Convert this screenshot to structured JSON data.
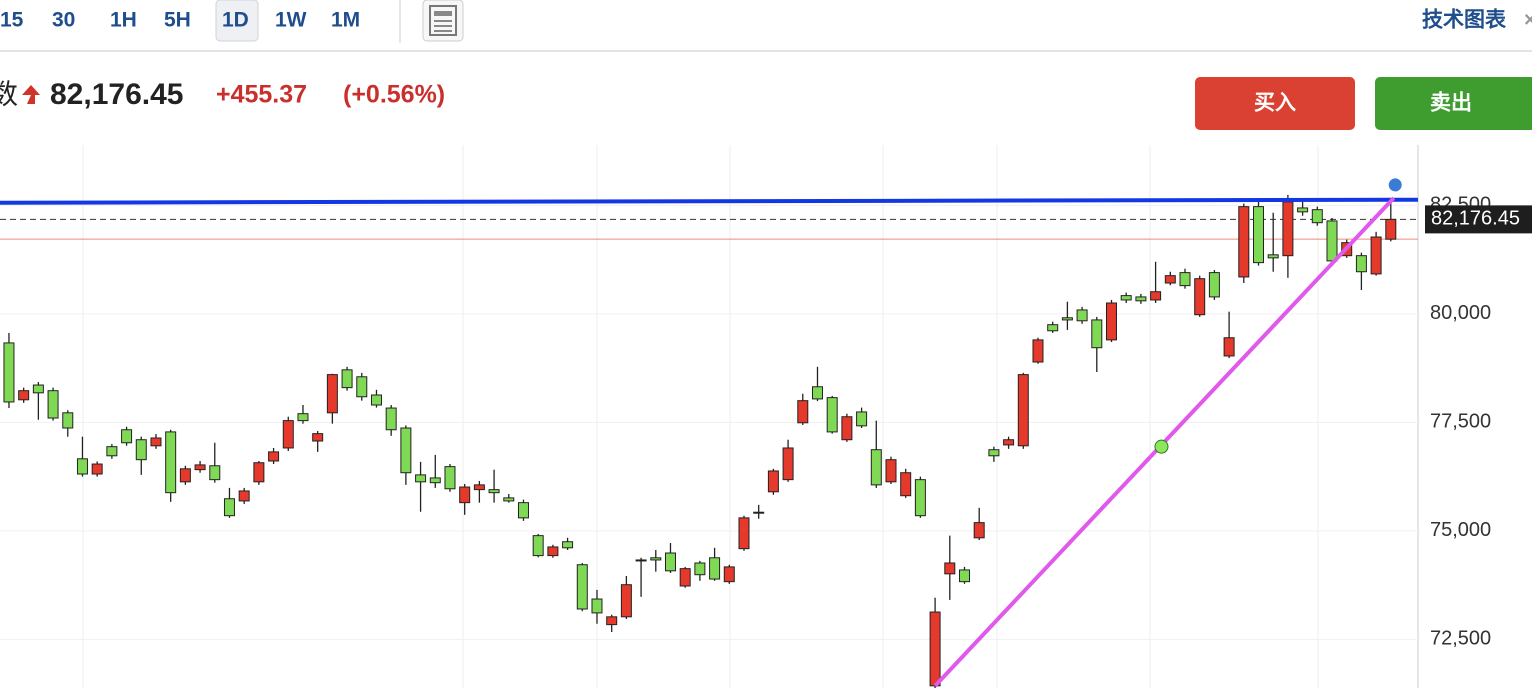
{
  "toolbar": {
    "tabs": [
      "15",
      "30",
      "1H",
      "5H",
      "1D",
      "1W",
      "1M"
    ],
    "selected_tab": 4,
    "right_link": "技术图表",
    "close": "×"
  },
  "header": {
    "name_fragment": "数",
    "last_price": {
      "value": 82176.45,
      "label": "82,176.45"
    },
    "change": "+455.37",
    "change_pct": "(+0.56%)",
    "buy": "买入",
    "sell": "卖出"
  },
  "chart_data": {
    "type": "candlestick",
    "up_color": "#e5392c",
    "down_color": "#80d955",
    "xlim": [
      -0.61,
      95.85
    ],
    "ylim": [
      71380,
      83890
    ],
    "yticks": [
      {
        "value": 72500,
        "label": "72,500"
      },
      {
        "value": 75000,
        "label": "75,000"
      },
      {
        "value": 77500,
        "label": "77,500"
      },
      {
        "value": 80000,
        "label": "80,000"
      },
      {
        "value": 82500,
        "label": "82,500"
      }
    ],
    "grid": true,
    "prev_close": 81721.08,
    "series": {
      "open": [
        79330,
        78020,
        78360,
        78230,
        77720,
        76660,
        76310,
        76940,
        77330,
        77100,
        76960,
        77280,
        76130,
        76410,
        76500,
        75740,
        75690,
        76130,
        76610,
        76910,
        77700,
        77070,
        77720,
        78710,
        78550,
        78130,
        77830,
        77370,
        76290,
        76220,
        76480,
        75650,
        75950,
        75950,
        75760,
        75650,
        74890,
        74430,
        74750,
        74220,
        73430,
        72840,
        73020,
        74330,
        74380,
        74490,
        73730,
        74260,
        74380,
        73830,
        74590,
        75430,
        75900,
        76180,
        77490,
        78320,
        78070,
        77100,
        77740,
        76870,
        76130,
        75810,
        76180,
        71430,
        74010,
        74100,
        74840,
        76870,
        76980,
        76960,
        78890,
        79750,
        79910,
        80090,
        79860,
        79400,
        80420,
        80390,
        80320,
        80710,
        80950,
        79980,
        80950,
        79030,
        80850,
        82470,
        81360,
        81340,
        82440,
        82400,
        82140,
        81340,
        81340,
        80920,
        81720
      ],
      "high": [
        79560,
        78300,
        78430,
        78300,
        77780,
        77170,
        76600,
        77000,
        77400,
        77170,
        77230,
        77330,
        76500,
        76610,
        77030,
        75990,
        75990,
        76610,
        76910,
        77630,
        77900,
        77300,
        78620,
        78780,
        78640,
        78250,
        77900,
        77430,
        76590,
        76750,
        76540,
        76080,
        76150,
        76410,
        75850,
        75720,
        74930,
        74680,
        74840,
        74260,
        73640,
        73070,
        73960,
        74380,
        74560,
        74720,
        74170,
        74310,
        74610,
        74220,
        75350,
        75600,
        76430,
        77100,
        78160,
        78780,
        78110,
        77700,
        77840,
        77540,
        76710,
        76430,
        76250,
        73460,
        74890,
        74170,
        75530,
        76940,
        77170,
        78640,
        79450,
        79820,
        80280,
        80160,
        79930,
        80320,
        80490,
        80460,
        81200,
        80970,
        81040,
        80880,
        81010,
        80050,
        82540,
        82630,
        82330,
        82740,
        82630,
        82470,
        82210,
        81710,
        81410,
        81890,
        82560
      ],
      "low": [
        77830,
        77950,
        77560,
        77540,
        77170,
        76250,
        76250,
        76660,
        76960,
        76290,
        76890,
        75670,
        76060,
        76340,
        76110,
        75300,
        75620,
        76060,
        76540,
        76840,
        77470,
        76820,
        77470,
        78230,
        78000,
        77840,
        77190,
        76060,
        75440,
        75990,
        75900,
        75370,
        75650,
        75650,
        75650,
        75230,
        74390,
        74380,
        74560,
        73150,
        72860,
        72670,
        72970,
        73480,
        74060,
        74030,
        73690,
        73850,
        73850,
        73780,
        74540,
        75280,
        75830,
        76130,
        77440,
        77990,
        77240,
        77050,
        77370,
        75990,
        76080,
        75760,
        75300,
        71380,
        73410,
        73780,
        74790,
        76590,
        76890,
        76890,
        78850,
        79560,
        79630,
        79770,
        78660,
        79350,
        80250,
        80230,
        80250,
        80660,
        80580,
        79930,
        80320,
        78980,
        80710,
        81110,
        80970,
        80830,
        82260,
        82030,
        81150,
        81290,
        80550,
        80880,
        81670
      ],
      "close": [
        77970,
        78230,
        78180,
        77600,
        77370,
        76310,
        76540,
        76730,
        77030,
        76640,
        77140,
        75880,
        76430,
        76520,
        76180,
        75350,
        75920,
        76570,
        76820,
        77540,
        77540,
        77240,
        78600,
        78300,
        78090,
        77900,
        77330,
        76340,
        76130,
        76110,
        75970,
        76010,
        76060,
        75880,
        75690,
        75300,
        74430,
        74630,
        74610,
        73200,
        73110,
        73020,
        73760,
        74310,
        74330,
        74080,
        74130,
        73990,
        73890,
        74170,
        75300,
        75410,
        76380,
        76910,
        78000,
        78040,
        77280,
        77630,
        77420,
        76060,
        76640,
        76340,
        75350,
        73130,
        74260,
        73830,
        75190,
        76730,
        77100,
        78600,
        79400,
        79610,
        79860,
        79840,
        79220,
        80250,
        80320,
        80300,
        80510,
        80880,
        80650,
        80810,
        80390,
        79450,
        82470,
        81180,
        81290,
        82580,
        82350,
        82100,
        81220,
        81640,
        80970,
        81770,
        82176.45
      ]
    },
    "lines": [
      {
        "color": "#1238e6",
        "x": [
          -0.61,
          95.85
        ],
        "y": [
          82560,
          82630
        ]
      },
      {
        "color": "#e059ec",
        "x": [
          63,
          94.2
        ],
        "y": [
          71430,
          82670
        ]
      }
    ],
    "points": [
      {
        "x": 78.4,
        "y": 76940,
        "color": "#8ee65a"
      },
      {
        "x": 94.3,
        "y": 82970,
        "color": "#3a7bd5"
      }
    ]
  }
}
